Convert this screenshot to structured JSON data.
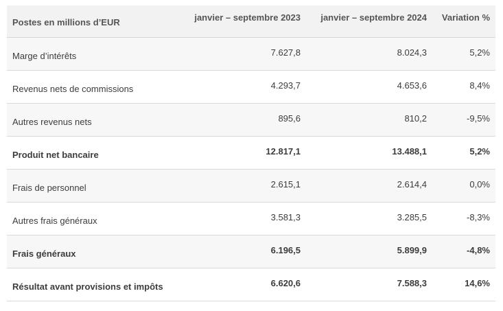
{
  "table": {
    "headers": [
      "Postes en millions d’EUR",
      "janvier – septembre 2023",
      "janvier – septembre 2024",
      "Variation %"
    ],
    "rows": [
      {
        "label": "Marge d’intérêts",
        "v2023": "7.627,8",
        "v2024": "8.024,3",
        "var": "5,2%",
        "bold": false
      },
      {
        "label": "Revenus nets de commissions",
        "v2023": "4.293,7",
        "v2024": "4.653,6",
        "var": "8,4%",
        "bold": false
      },
      {
        "label": "Autres revenus nets",
        "v2023": "895,6",
        "v2024": "810,2",
        "var": "-9,5%",
        "bold": false
      },
      {
        "label": "Produit net bancaire",
        "v2023": "12.817,1",
        "v2024": "13.488,1",
        "var": "5,2%",
        "bold": true
      },
      {
        "label": "Frais de personnel",
        "v2023": "2.615,1",
        "v2024": "2.614,4",
        "var": "0,0%",
        "bold": false
      },
      {
        "label": "Autres frais généraux",
        "v2023": "3.581,3",
        "v2024": "3.285,5",
        "var": "-8,3%",
        "bold": false
      },
      {
        "label": "Frais généraux",
        "v2023": "6.196,5",
        "v2024": "5.899,9",
        "var": "-4,8%",
        "bold": true
      },
      {
        "label": "Résultat avant provisions et impôts",
        "v2023": "6.620,6",
        "v2024": "7.588,3",
        "var": "14,6%",
        "bold": true
      }
    ]
  }
}
